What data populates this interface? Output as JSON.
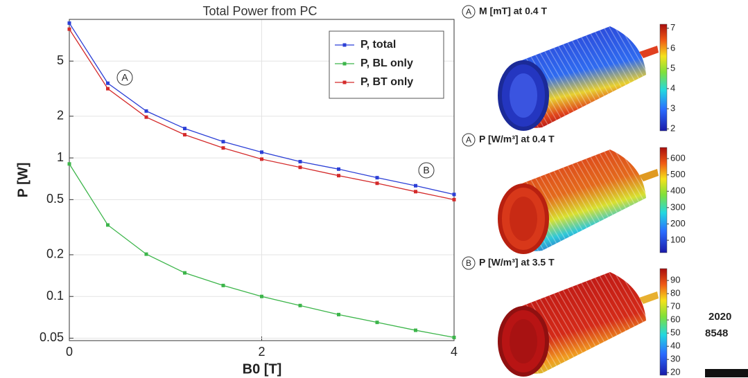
{
  "chart_data": {
    "type": "line",
    "title": "Total Power from PC",
    "x_label": "B0 [T]",
    "y_label": "P [W]",
    "x": [
      0,
      0.4,
      0.8,
      1.2,
      1.6,
      2.0,
      2.4,
      2.8,
      3.2,
      3.6,
      4.0
    ],
    "series": [
      {
        "name": "P, total",
        "color": "#2b3fd6",
        "values": [
          9.4,
          3.46,
          2.18,
          1.63,
          1.31,
          1.1,
          0.94,
          0.83,
          0.72,
          0.63,
          0.545
        ]
      },
      {
        "name": "P, BL only",
        "color": "#3cb54a",
        "values": [
          0.905,
          0.328,
          0.202,
          0.148,
          0.12,
          0.1,
          0.086,
          0.074,
          0.065,
          0.057,
          0.0506
        ]
      },
      {
        "name": "P, BT only",
        "color": "#d42a2a",
        "values": [
          8.5,
          3.16,
          1.97,
          1.47,
          1.18,
          0.98,
          0.855,
          0.745,
          0.656,
          0.571,
          0.5
        ]
      }
    ],
    "xlim": [
      0,
      4
    ],
    "xticks": [
      0,
      2,
      4
    ],
    "ylim": [
      0.048,
      10
    ],
    "yticks": [
      0.05,
      0.1,
      0.2,
      0.5,
      1,
      2,
      5
    ],
    "log_y": true,
    "grid": true,
    "legend": "upper right",
    "annotations": [
      "A",
      "B"
    ]
  },
  "panels": [
    {
      "marker": "A",
      "title": "M [mT] at 0.4 T",
      "clim": [
        1.9,
        7.2
      ],
      "ticks": [
        2,
        3,
        4,
        5,
        6,
        7
      ]
    },
    {
      "marker": "A",
      "title": "P [W/m³] at 0.4 T",
      "clim": [
        24,
        668
      ],
      "ticks": [
        100,
        200,
        300,
        400,
        500,
        600
      ]
    },
    {
      "marker": "B",
      "title": "P [W/m³] at 3.5 T",
      "clim": [
        18,
        99
      ],
      "ticks": [
        20,
        30,
        40,
        50,
        60,
        70,
        80,
        90
      ]
    }
  ],
  "side_texts": [
    "2020",
    "8548"
  ]
}
